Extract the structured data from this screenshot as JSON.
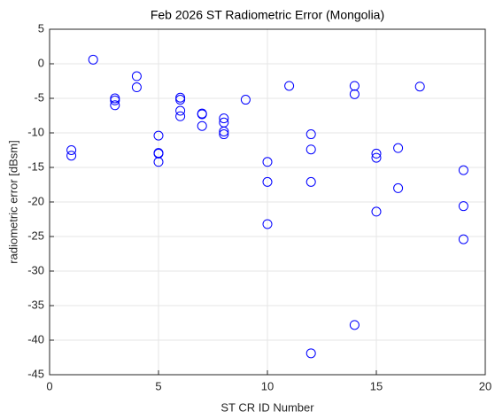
{
  "chart_data": {
    "type": "scatter",
    "title": "Feb 2026 ST Radiometric Error (Mongolia)",
    "x_label": "ST CR ID Number",
    "y_label": "radiometric error [dBsm]",
    "color": "#0000ff",
    "grid": true,
    "xlim": [
      0,
      20
    ],
    "xticks": [
      0,
      5,
      10,
      15,
      20
    ],
    "ylim": [
      -45,
      5
    ],
    "yticks": [
      5,
      0,
      -5,
      -10,
      -15,
      -20,
      -25,
      -30,
      -35,
      -40,
      -45
    ],
    "x": [
      1,
      1,
      2,
      3,
      3,
      3,
      4,
      4,
      5,
      5,
      5,
      5,
      6,
      6,
      6,
      6,
      7,
      7,
      7,
      8,
      8,
      8,
      8,
      9,
      10,
      10,
      10,
      11,
      12,
      12,
      12,
      12,
      14,
      14,
      14,
      15,
      15,
      15,
      16,
      16,
      17,
      19,
      19,
      19
    ],
    "values": [
      -12.5,
      -13.3,
      0.6,
      -5.0,
      -5.3,
      -6.0,
      -1.8,
      -3.4,
      -10.4,
      -12.9,
      -13.0,
      -14.2,
      -4.9,
      -5.2,
      -6.8,
      -7.6,
      -7.2,
      -7.3,
      -9.0,
      -7.9,
      -8.5,
      -9.8,
      -10.2,
      -5.2,
      -14.2,
      -17.1,
      -23.2,
      -3.2,
      -10.2,
      -12.4,
      -17.1,
      -41.9,
      -3.2,
      -4.4,
      -37.8,
      -13.0,
      -13.6,
      -21.4,
      -12.2,
      -18.0,
      -3.3,
      -15.4,
      -20.6,
      -25.4
    ]
  }
}
